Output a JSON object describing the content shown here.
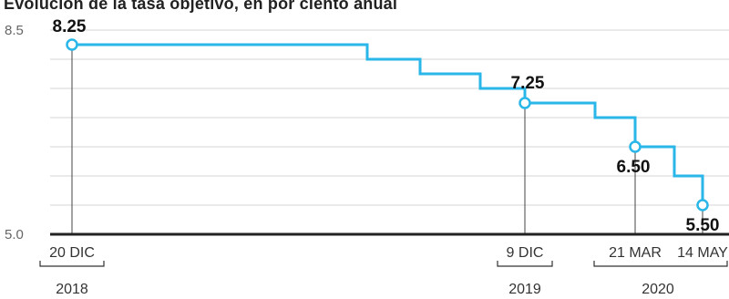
{
  "chart_data": {
    "type": "line",
    "title": "Evolución de la tasa objetivo, en por ciento anual",
    "step": true,
    "ylim": [
      5.0,
      8.5
    ],
    "y_ticks": [
      "8.5",
      "5.0"
    ],
    "grid": true,
    "colors": {
      "line": "#29b6e8",
      "axis": "#222222",
      "grid": "#d6d6d6",
      "marker_fill": "#ffffff"
    },
    "series": [
      {
        "values": [
          8.25,
          8.25,
          8.0,
          7.75,
          7.5,
          7.25,
          7.0,
          6.75,
          6.5,
          6.0,
          5.5
        ]
      }
    ],
    "highlighted_points": [
      {
        "label": "8.25",
        "value": 8.25,
        "date_label": "20 DIC",
        "year_label": "2018"
      },
      {
        "label": "7.25",
        "value": 7.25,
        "date_label": "9 DIC",
        "year_label": "2019"
      },
      {
        "label": "6.50",
        "value": 6.5,
        "date_label": "21 MAR",
        "year_label": ""
      },
      {
        "label": "5.50",
        "value": 5.5,
        "date_label": "14 MAY",
        "year_label": ""
      }
    ],
    "year_group_label": "2020"
  }
}
